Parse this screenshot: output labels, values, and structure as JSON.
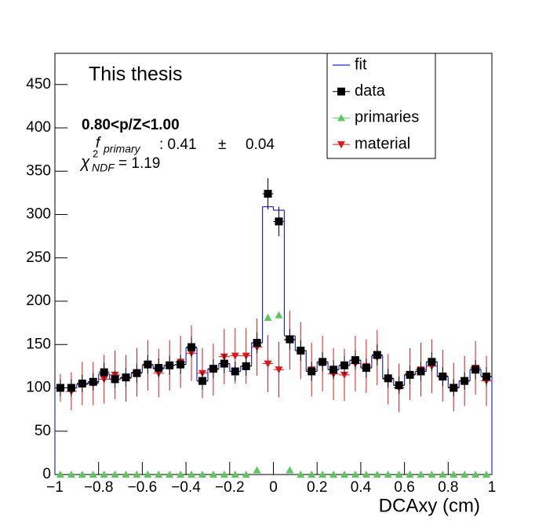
{
  "chart_data": {
    "type": "histogram",
    "xlabel": "DCAxy (cm)",
    "annotations": {
      "label": "This thesis",
      "bin_range": "0.80<p/Z<1.00",
      "fraction": {
        "symbol": "f",
        "subscript": "primary",
        "value": ": 0.41",
        "pm": "±",
        "error": "0.04"
      },
      "chi2": {
        "symbol": "χ",
        "superscript": "2",
        "subscript": "NDF",
        "value": "= 1.19"
      }
    },
    "bins": [
      -1,
      -0.95,
      -0.9,
      -0.85,
      -0.8,
      -0.75,
      -0.7,
      -0.65,
      -0.6,
      -0.55,
      -0.5,
      -0.45,
      -0.4,
      -0.35,
      -0.3,
      -0.25,
      -0.2,
      -0.15,
      -0.1,
      -0.05,
      0,
      0.05,
      0.1,
      0.15,
      0.2,
      0.25,
      0.3,
      0.35,
      0.4,
      0.45,
      0.5,
      0.55,
      0.6,
      0.65,
      0.7,
      0.75,
      0.8,
      0.85,
      0.9,
      0.95,
      1
    ],
    "xlim": [
      -1,
      1
    ],
    "xticks": [
      {
        "value": -1,
        "label": "−1"
      },
      {
        "value": -0.8,
        "label": "−0.8"
      },
      {
        "value": -0.6,
        "label": "−0.6"
      },
      {
        "value": -0.4,
        "label": "−0.4"
      },
      {
        "value": -0.2,
        "label": "−0.2"
      },
      0,
      0.2,
      0.4,
      0.6,
      0.8,
      1
    ],
    "ylim": [
      0,
      486
    ],
    "yticks": [
      0,
      50,
      100,
      150,
      200,
      250,
      300,
      350,
      400,
      450
    ],
    "legend": "top-right",
    "series": [
      {
        "name": "fit",
        "style": "step",
        "color": "#1a2ad0",
        "values": [
          100,
          100,
          104,
          106,
          116,
          110,
          112,
          118,
          126,
          122,
          126,
          127,
          146,
          108,
          122,
          128,
          119,
          125,
          152,
          309,
          305,
          160,
          143,
          119,
          130,
          121,
          126,
          132,
          123,
          137,
          111,
          103,
          115,
          119,
          130,
          113,
          100,
          108,
          121,
          113
        ]
      },
      {
        "name": "data",
        "style": "square",
        "color": "#000000",
        "values": [
          100,
          100,
          105,
          107,
          118,
          110,
          112,
          117,
          127,
          123,
          126,
          127,
          147,
          108,
          122,
          128,
          119,
          125,
          152,
          324,
          292,
          156,
          143,
          119,
          130,
          121,
          126,
          132,
          123,
          138,
          111,
          103,
          115,
          119,
          130,
          113,
          100,
          108,
          121,
          113
        ],
        "errors": [
          10,
          10,
          10,
          10,
          11,
          10,
          11,
          11,
          11,
          11,
          11,
          11,
          12,
          10,
          11,
          11,
          11,
          11,
          12,
          18,
          17,
          12,
          12,
          11,
          11,
          11,
          11,
          11,
          11,
          12,
          11,
          10,
          11,
          11,
          11,
          11,
          10,
          10,
          11,
          11
        ]
      },
      {
        "name": "primaries",
        "style": "triangle-up",
        "color": "#5cc85c",
        "values": [
          0,
          0,
          0,
          0,
          0,
          0,
          0,
          0,
          0,
          0,
          0,
          0,
          0,
          0,
          0,
          0,
          0,
          0,
          5,
          181,
          184,
          5,
          0,
          0,
          0,
          0,
          0,
          0,
          0,
          0,
          0,
          0,
          0,
          0,
          0,
          0,
          0,
          0,
          0,
          0
        ]
      },
      {
        "name": "material",
        "style": "triangle-down",
        "color": "#e0161b",
        "values": [
          100,
          96,
          105,
          105,
          110,
          115,
          111,
          118,
          126,
          117,
          126,
          130,
          140,
          117,
          121,
          136,
          137,
          137,
          147,
          128,
          121,
          155,
          143,
          121,
          128,
          116,
          115,
          128,
          125,
          135,
          110,
          100,
          116,
          121,
          125,
          114,
          101,
          108,
          123,
          108
        ],
        "errors": [
          16,
          22,
          25,
          25,
          28,
          28,
          27,
          28,
          29,
          28,
          29,
          30,
          32,
          29,
          30,
          32,
          32,
          32,
          33,
          33,
          32,
          34,
          33,
          31,
          32,
          30,
          30,
          32,
          31,
          32,
          29,
          28,
          30,
          31,
          31,
          30,
          28,
          29,
          31,
          29
        ]
      }
    ]
  }
}
